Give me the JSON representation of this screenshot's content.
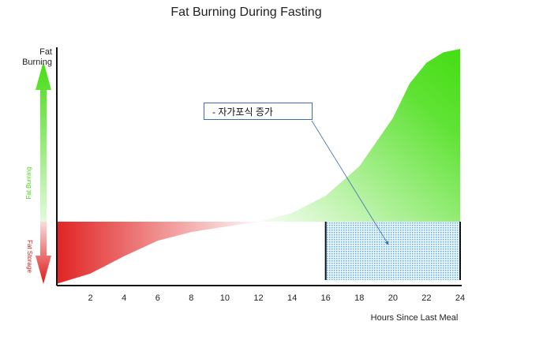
{
  "chart_data": {
    "type": "area",
    "title": "Fat Burning During Fasting",
    "ylabel": "Fat Burning",
    "xlabel": "Hours Since Last Meal",
    "arrow_labels": {
      "up": "Fat Burning",
      "down": "Fat Storage"
    },
    "annotation": "- 자가포식 증가",
    "x": [
      0,
      2,
      4,
      6,
      8,
      10,
      12,
      14,
      16,
      18,
      20,
      21,
      22,
      23,
      24
    ],
    "values": [
      -36,
      -30,
      -20,
      -11,
      -6,
      -3,
      0,
      5,
      15,
      32,
      60,
      80,
      92,
      98,
      100
    ],
    "colors": {
      "burning": "#44dd11",
      "storage": "#e01818",
      "highlight": "#5aaeea"
    },
    "highlight_x": [
      16,
      24
    ],
    "xlim": [
      0,
      24
    ],
    "xticks": [
      2,
      4,
      6,
      8,
      10,
      12,
      14,
      16,
      18,
      20,
      22,
      24
    ],
    "ylim": [
      -37,
      100
    ]
  }
}
